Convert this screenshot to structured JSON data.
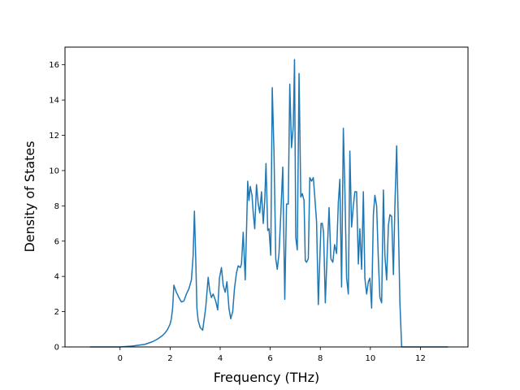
{
  "chart_data": {
    "type": "line",
    "title": "",
    "xlabel": "Frequency (THz)",
    "ylabel": "Density of States",
    "xlim": [
      -2.2,
      13.9
    ],
    "ylim": [
      0,
      17
    ],
    "x_ticks": [
      0,
      2,
      4,
      6,
      8,
      10,
      12
    ],
    "y_ticks": [
      0,
      2,
      4,
      6,
      8,
      10,
      12,
      14,
      16
    ],
    "grid": false,
    "legend": "none",
    "series": [
      {
        "color": "#1f77b4",
        "x": [
          -1.2,
          -0.5,
          0.0,
          0.5,
          1.0,
          1.3,
          1.5,
          1.7,
          1.8,
          1.9,
          2.0,
          2.05,
          2.1,
          2.15,
          2.25,
          2.35,
          2.45,
          2.55,
          2.65,
          2.75,
          2.85,
          2.92,
          2.97,
          3.02,
          3.07,
          3.12,
          3.2,
          3.3,
          3.42,
          3.52,
          3.58,
          3.65,
          3.72,
          3.82,
          3.9,
          3.97,
          4.05,
          4.12,
          4.2,
          4.27,
          4.35,
          4.42,
          4.5,
          4.57,
          4.65,
          4.72,
          4.8,
          4.85,
          4.92,
          5.0,
          5.05,
          5.1,
          5.15,
          5.2,
          5.27,
          5.32,
          5.38,
          5.45,
          5.52,
          5.58,
          5.65,
          5.72,
          5.78,
          5.83,
          5.9,
          5.95,
          6.02,
          6.08,
          6.15,
          6.22,
          6.28,
          6.35,
          6.42,
          6.5,
          6.58,
          6.65,
          6.72,
          6.78,
          6.85,
          6.92,
          6.97,
          7.02,
          7.08,
          7.15,
          7.22,
          7.28,
          7.35,
          7.4,
          7.45,
          7.52,
          7.58,
          7.65,
          7.72,
          7.78,
          7.85,
          7.92,
          7.98,
          8.03,
          8.08,
          8.13,
          8.2,
          8.27,
          8.35,
          8.42,
          8.5,
          8.57,
          8.65,
          8.72,
          8.78,
          8.85,
          8.92,
          8.98,
          9.05,
          9.12,
          9.18,
          9.25,
          9.32,
          9.38,
          9.45,
          9.52,
          9.58,
          9.65,
          9.72,
          9.78,
          9.85,
          9.92,
          9.98,
          10.05,
          10.12,
          10.18,
          10.25,
          10.32,
          10.38,
          10.45,
          10.52,
          10.58,
          10.65,
          10.72,
          10.78,
          10.85,
          10.92,
          10.98,
          11.05,
          11.12,
          11.18,
          11.25,
          11.32,
          11.38,
          11.45,
          11.52,
          11.58,
          11.65,
          11.72,
          11.78,
          11.85,
          11.92,
          11.97,
          12.2,
          12.6,
          13.1
        ],
        "y": [
          0.0,
          0.0,
          0.0,
          0.05,
          0.15,
          0.3,
          0.45,
          0.65,
          0.8,
          1.0,
          1.3,
          1.6,
          2.2,
          3.5,
          3.1,
          2.8,
          2.55,
          2.6,
          3.0,
          3.3,
          3.8,
          5.2,
          7.7,
          5.2,
          2.2,
          1.5,
          1.1,
          0.95,
          2.2,
          3.95,
          3.2,
          2.8,
          3.0,
          2.6,
          2.1,
          3.9,
          4.5,
          3.5,
          3.1,
          3.7,
          2.2,
          1.6,
          2.0,
          3.3,
          4.2,
          4.6,
          4.5,
          4.7,
          6.5,
          3.8,
          6.5,
          9.4,
          8.3,
          9.1,
          8.6,
          7.6,
          6.7,
          9.2,
          8.1,
          7.6,
          8.8,
          7.0,
          8.3,
          10.4,
          6.6,
          6.7,
          5.2,
          14.7,
          11.0,
          5.0,
          4.4,
          5.3,
          7.5,
          10.2,
          2.7,
          8.1,
          8.1,
          14.9,
          11.3,
          12.5,
          16.3,
          6.2,
          5.5,
          15.5,
          8.5,
          8.7,
          8.3,
          4.9,
          4.8,
          5.0,
          9.6,
          9.4,
          9.6,
          8.5,
          7.1,
          2.4,
          5.0,
          7.0,
          7.0,
          6.5,
          2.5,
          5.2,
          7.9,
          5.0,
          4.8,
          5.8,
          5.3,
          8.2,
          9.5,
          3.4,
          12.4,
          9.0,
          3.9,
          3.0,
          11.1,
          6.8,
          8.0,
          8.8,
          8.8,
          4.7,
          6.7,
          4.4,
          8.8,
          3.9,
          3.0,
          3.7,
          3.9,
          2.2,
          7.5,
          8.6,
          8.0,
          4.9,
          2.8,
          2.5,
          8.9,
          5.2,
          3.8,
          6.9,
          7.5,
          7.4,
          4.1,
          8.0,
          11.4,
          6.8,
          2.5,
          0.0,
          0.0,
          0.0,
          0.0,
          0.0,
          0.0,
          0.0,
          0.0,
          0.0,
          0.0,
          0.0,
          0.0,
          0.0,
          0.0,
          0.0
        ]
      }
    ]
  }
}
